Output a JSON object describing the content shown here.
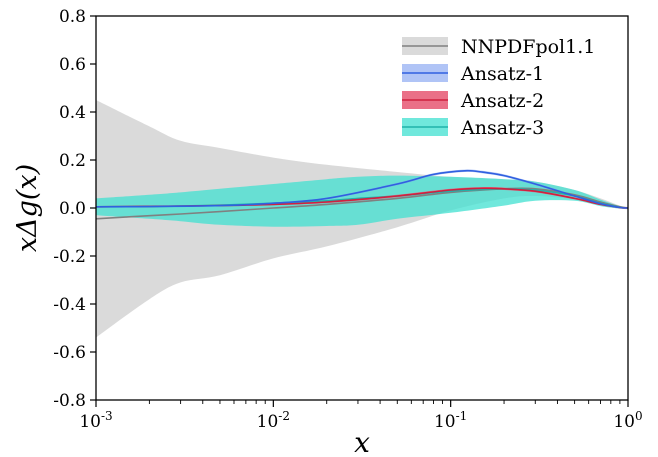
{
  "chart_data": {
    "type": "area",
    "xscale": "log",
    "xlabel": "x",
    "ylabel": "xΔg(x)",
    "xlim": [
      0.001,
      1
    ],
    "ylim": [
      -0.8,
      0.8
    ],
    "xticks": [
      {
        "value": 0.001,
        "base": "10",
        "exp": "-3"
      },
      {
        "value": 0.01,
        "base": "10",
        "exp": "-2"
      },
      {
        "value": 0.1,
        "base": "10",
        "exp": "-1"
      },
      {
        "value": 1,
        "base": "10",
        "exp": "0"
      }
    ],
    "yticks": [
      {
        "value": 0.8,
        "label": "0.8"
      },
      {
        "value": 0.6,
        "label": "0.6"
      },
      {
        "value": 0.4,
        "label": "0.4"
      },
      {
        "value": 0.2,
        "label": "0.2"
      },
      {
        "value": 0.0,
        "label": "0.0"
      },
      {
        "value": -0.2,
        "label": "-0.2"
      },
      {
        "value": -0.4,
        "label": "-0.4"
      },
      {
        "value": -0.6,
        "label": "-0.6"
      },
      {
        "value": -0.8,
        "label": "-0.8"
      }
    ],
    "grid": false,
    "legend_position": "top-right",
    "series": [
      {
        "name": "NNPDFpol1.1",
        "fill": "#d3d3d3",
        "fill_opacity": 0.85,
        "line": "#808080",
        "x": [
          0.001,
          0.002,
          0.003,
          0.005,
          0.01,
          0.02,
          0.05,
          0.1,
          0.2,
          0.3,
          0.5,
          0.7,
          0.9,
          1.0
        ],
        "central": [
          -0.045,
          -0.032,
          -0.025,
          -0.015,
          0.0,
          0.015,
          0.04,
          0.065,
          0.08,
          0.08,
          0.055,
          0.025,
          0.005,
          0.0
        ],
        "upper": [
          0.45,
          0.34,
          0.28,
          0.25,
          0.21,
          0.18,
          0.15,
          0.13,
          0.12,
          0.11,
          0.075,
          0.04,
          0.01,
          0.005
        ],
        "lower": [
          -0.54,
          -0.38,
          -0.31,
          -0.28,
          -0.21,
          -0.16,
          -0.08,
          -0.01,
          0.04,
          0.05,
          0.035,
          0.01,
          -0.003,
          -0.005
        ]
      },
      {
        "name": "Ansatz-3",
        "fill": "#40e0d0",
        "fill_opacity": 0.75,
        "line": "#20b2aa",
        "x": [
          0.001,
          0.002,
          0.003,
          0.005,
          0.01,
          0.02,
          0.03,
          0.05,
          0.1,
          0.2,
          0.3,
          0.5,
          0.7,
          0.9,
          1.0
        ],
        "central": [
          0.005,
          0.006,
          0.008,
          0.012,
          0.02,
          0.03,
          0.04,
          0.05,
          0.07,
          0.08,
          0.075,
          0.05,
          0.02,
          0.003,
          0.0
        ],
        "upper": [
          0.04,
          0.055,
          0.065,
          0.08,
          0.1,
          0.12,
          0.13,
          0.135,
          0.13,
          0.12,
          0.11,
          0.075,
          0.035,
          0.008,
          0.003
        ],
        "lower": [
          -0.03,
          -0.045,
          -0.055,
          -0.07,
          -0.078,
          -0.075,
          -0.07,
          -0.045,
          -0.02,
          0.01,
          0.03,
          0.03,
          0.008,
          -0.002,
          -0.003
        ]
      },
      {
        "name": "Ansatz-2",
        "fill": "#e8607a",
        "fill_opacity": 0.9,
        "line": "#d0203f",
        "x": [
          0.001,
          0.002,
          0.005,
          0.01,
          0.02,
          0.05,
          0.1,
          0.15,
          0.2,
          0.3,
          0.5,
          0.7,
          0.9,
          1.0
        ],
        "central": [
          0.005,
          0.007,
          0.01,
          0.015,
          0.025,
          0.05,
          0.075,
          0.082,
          0.08,
          0.07,
          0.04,
          0.015,
          0.002,
          0.0
        ],
        "upper": [
          0.007,
          0.009,
          0.012,
          0.018,
          0.029,
          0.055,
          0.08,
          0.087,
          0.085,
          0.075,
          0.044,
          0.017,
          0.003,
          0.001
        ],
        "lower": [
          0.003,
          0.005,
          0.008,
          0.012,
          0.021,
          0.045,
          0.07,
          0.077,
          0.075,
          0.065,
          0.036,
          0.013,
          0.001,
          -0.001
        ]
      },
      {
        "name": "Ansatz-1",
        "fill": "#7b9cf0",
        "fill_opacity": 0.6,
        "line": "#3060e0",
        "x": [
          0.001,
          0.002,
          0.005,
          0.01,
          0.02,
          0.05,
          0.08,
          0.12,
          0.15,
          0.2,
          0.3,
          0.5,
          0.7,
          0.9,
          1.0
        ],
        "central": [
          0.005,
          0.006,
          0.01,
          0.02,
          0.04,
          0.1,
          0.14,
          0.155,
          0.15,
          0.135,
          0.1,
          0.05,
          0.018,
          0.002,
          0.0
        ],
        "upper": [
          0.007,
          0.008,
          0.012,
          0.023,
          0.044,
          0.105,
          0.145,
          0.16,
          0.155,
          0.14,
          0.105,
          0.054,
          0.02,
          0.003,
          0.001
        ],
        "lower": [
          0.003,
          0.004,
          0.008,
          0.017,
          0.036,
          0.095,
          0.135,
          0.15,
          0.145,
          0.13,
          0.095,
          0.046,
          0.016,
          0.001,
          -0.001
        ]
      }
    ],
    "legend_order": [
      "NNPDFpol1.1",
      "Ansatz-1",
      "Ansatz-2",
      "Ansatz-3"
    ]
  }
}
